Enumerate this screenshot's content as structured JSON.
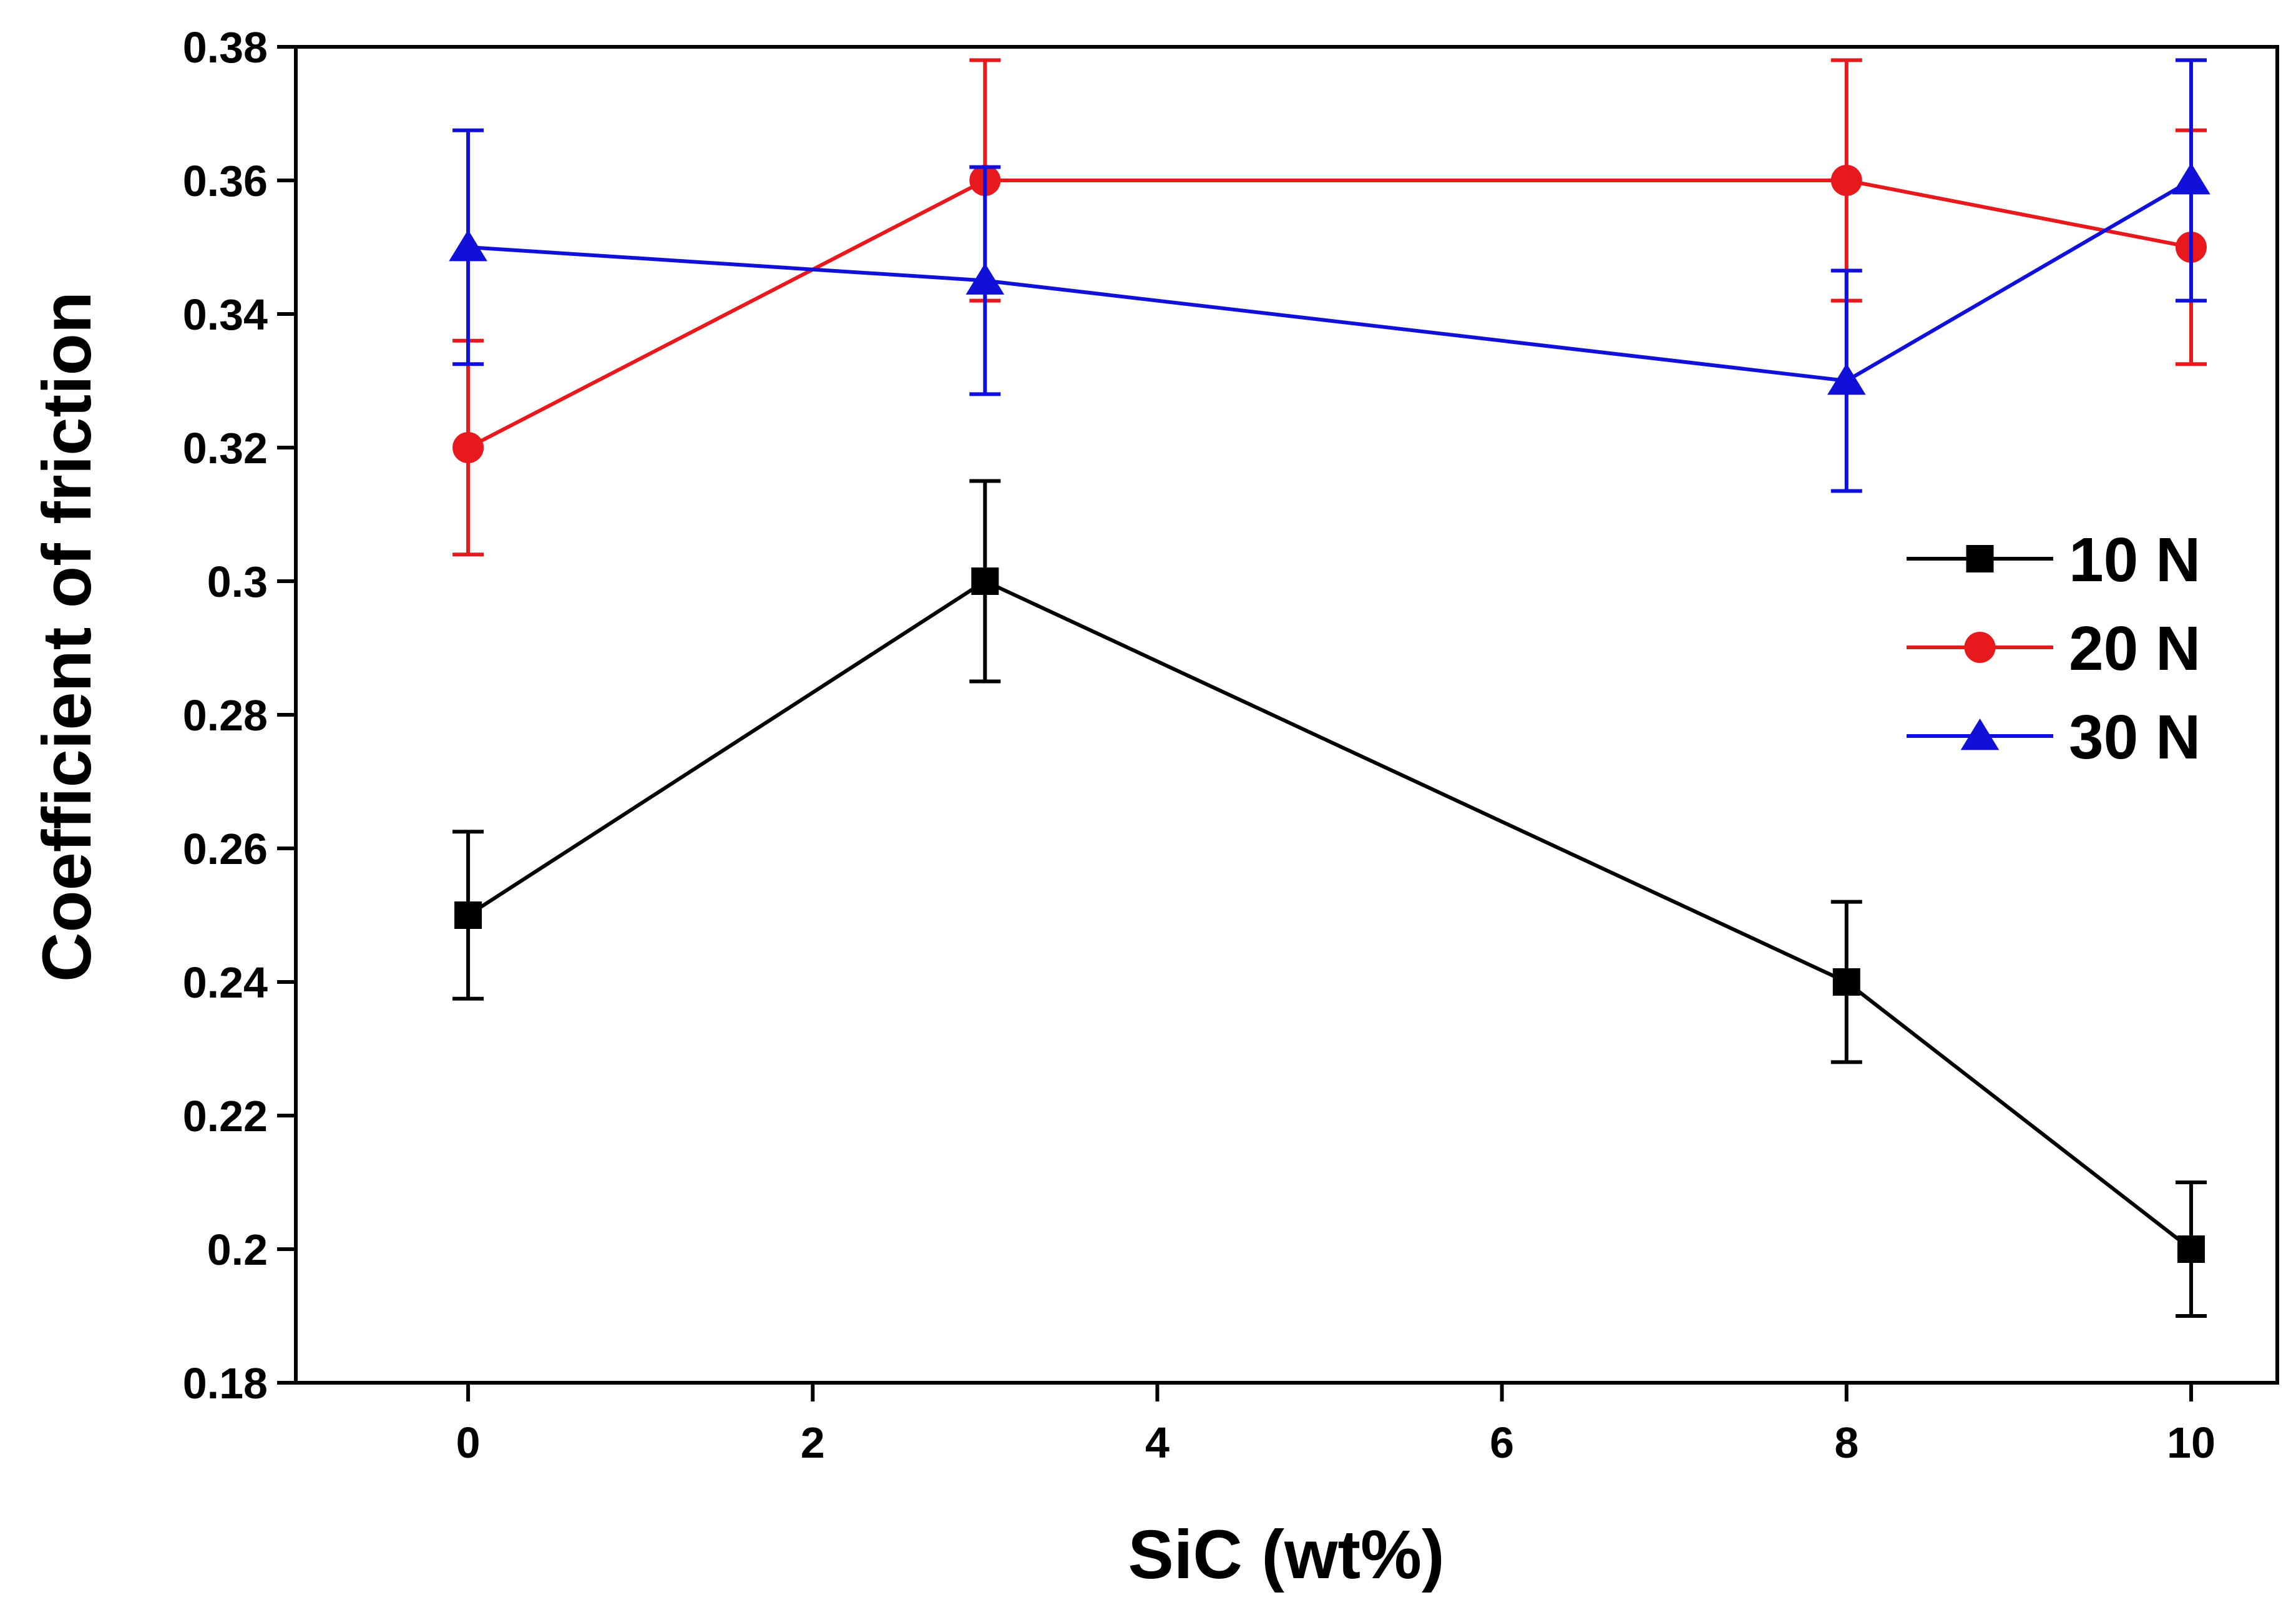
{
  "chart_data": {
    "type": "line",
    "title": "",
    "xlabel": "SiC (wt%)",
    "ylabel": "Coefficient of friction",
    "xlim": [
      -1,
      10.5
    ],
    "ylim": [
      0.18,
      0.38
    ],
    "x_ticks": [
      0,
      2,
      4,
      6,
      8,
      10
    ],
    "x_tick_labels": [
      "0",
      "2",
      "4",
      "6",
      "8",
      "10"
    ],
    "y_ticks": [
      0.18,
      0.2,
      0.22,
      0.24,
      0.26,
      0.28,
      0.3,
      0.32,
      0.34,
      0.36,
      0.38
    ],
    "y_tick_labels": [
      "0.18",
      "0.2",
      "0.22",
      "0.24",
      "0.26",
      "0.28",
      "0.3",
      "0.32",
      "0.34",
      "0.36",
      "0.38"
    ],
    "grid": false,
    "legend_position": "right",
    "x": [
      0,
      3,
      8,
      10
    ],
    "series": [
      {
        "name": "10 N",
        "color": "#000000",
        "marker": "square",
        "values": [
          0.25,
          0.3,
          0.24,
          0.2
        ],
        "errors": [
          0.0125,
          0.015,
          0.012,
          0.01
        ]
      },
      {
        "name": "20 N",
        "color": "#e8191c",
        "marker": "circle",
        "values": [
          0.32,
          0.36,
          0.36,
          0.35
        ],
        "errors": [
          0.016,
          0.018,
          0.018,
          0.0175
        ]
      },
      {
        "name": "30 N",
        "color": "#1010d8",
        "marker": "triangle",
        "values": [
          0.35,
          0.345,
          0.33,
          0.36
        ],
        "errors": [
          0.0175,
          0.017,
          0.0165,
          0.018
        ]
      }
    ]
  }
}
